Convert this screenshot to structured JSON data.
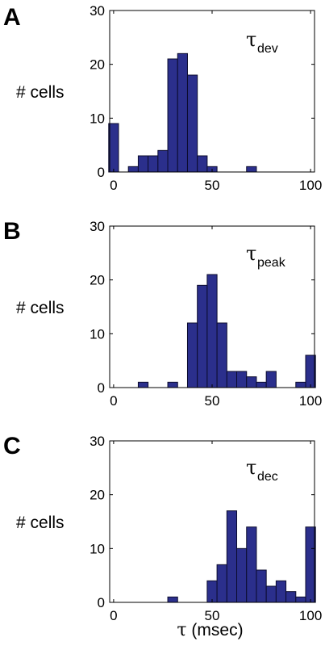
{
  "figure": {
    "xlabel_symbol": "τ",
    "xlabel_text": " (msec)"
  },
  "colors": {
    "bar_fill": "#2b2f8c",
    "bar_edge": "#0c0c2e",
    "axis": "#000000"
  },
  "chart_data": [
    {
      "type": "bar",
      "panel": "A",
      "ylabel": "# cells",
      "annotation_symbol": "τ",
      "annotation_sub": "dev",
      "xlim": [
        -2,
        102
      ],
      "ylim": [
        0,
        30
      ],
      "xticks": [
        0,
        50,
        100
      ],
      "yticks": [
        0,
        10,
        20,
        30
      ],
      "bin_width": 5,
      "bin_centers": [
        0,
        5,
        10,
        15,
        20,
        25,
        30,
        35,
        40,
        45,
        50,
        55,
        60,
        65,
        70,
        75,
        80,
        85,
        90,
        95,
        100
      ],
      "values": [
        9,
        0,
        1,
        3,
        3,
        4,
        21,
        22,
        18,
        3,
        1,
        0,
        0,
        0,
        1,
        0,
        0,
        0,
        0,
        0,
        0
      ]
    },
    {
      "type": "bar",
      "panel": "B",
      "ylabel": "# cells",
      "annotation_symbol": "τ",
      "annotation_sub": "peak",
      "xlim": [
        -2,
        102
      ],
      "ylim": [
        0,
        30
      ],
      "xticks": [
        0,
        50,
        100
      ],
      "yticks": [
        0,
        10,
        20,
        30
      ],
      "bin_width": 5,
      "bin_centers": [
        0,
        5,
        10,
        15,
        20,
        25,
        30,
        35,
        40,
        45,
        50,
        55,
        60,
        65,
        70,
        75,
        80,
        85,
        90,
        95,
        100
      ],
      "values": [
        0,
        0,
        0,
        1,
        0,
        0,
        1,
        0,
        12,
        19,
        21,
        12,
        3,
        3,
        2,
        1,
        3,
        0,
        0,
        1,
        6
      ]
    },
    {
      "type": "bar",
      "panel": "C",
      "ylabel": "# cells",
      "annotation_symbol": "τ",
      "annotation_sub": "dec",
      "xlim": [
        -2,
        102
      ],
      "ylim": [
        0,
        30
      ],
      "xticks": [
        0,
        50,
        100
      ],
      "yticks": [
        0,
        10,
        20,
        30
      ],
      "bin_width": 5,
      "bin_centers": [
        0,
        5,
        10,
        15,
        20,
        25,
        30,
        35,
        40,
        45,
        50,
        55,
        60,
        65,
        70,
        75,
        80,
        85,
        90,
        95,
        100
      ],
      "values": [
        0,
        0,
        0,
        0,
        0,
        0,
        1,
        0,
        0,
        0,
        4,
        7,
        17,
        10,
        14,
        6,
        3,
        4,
        2,
        1,
        14
      ]
    }
  ]
}
